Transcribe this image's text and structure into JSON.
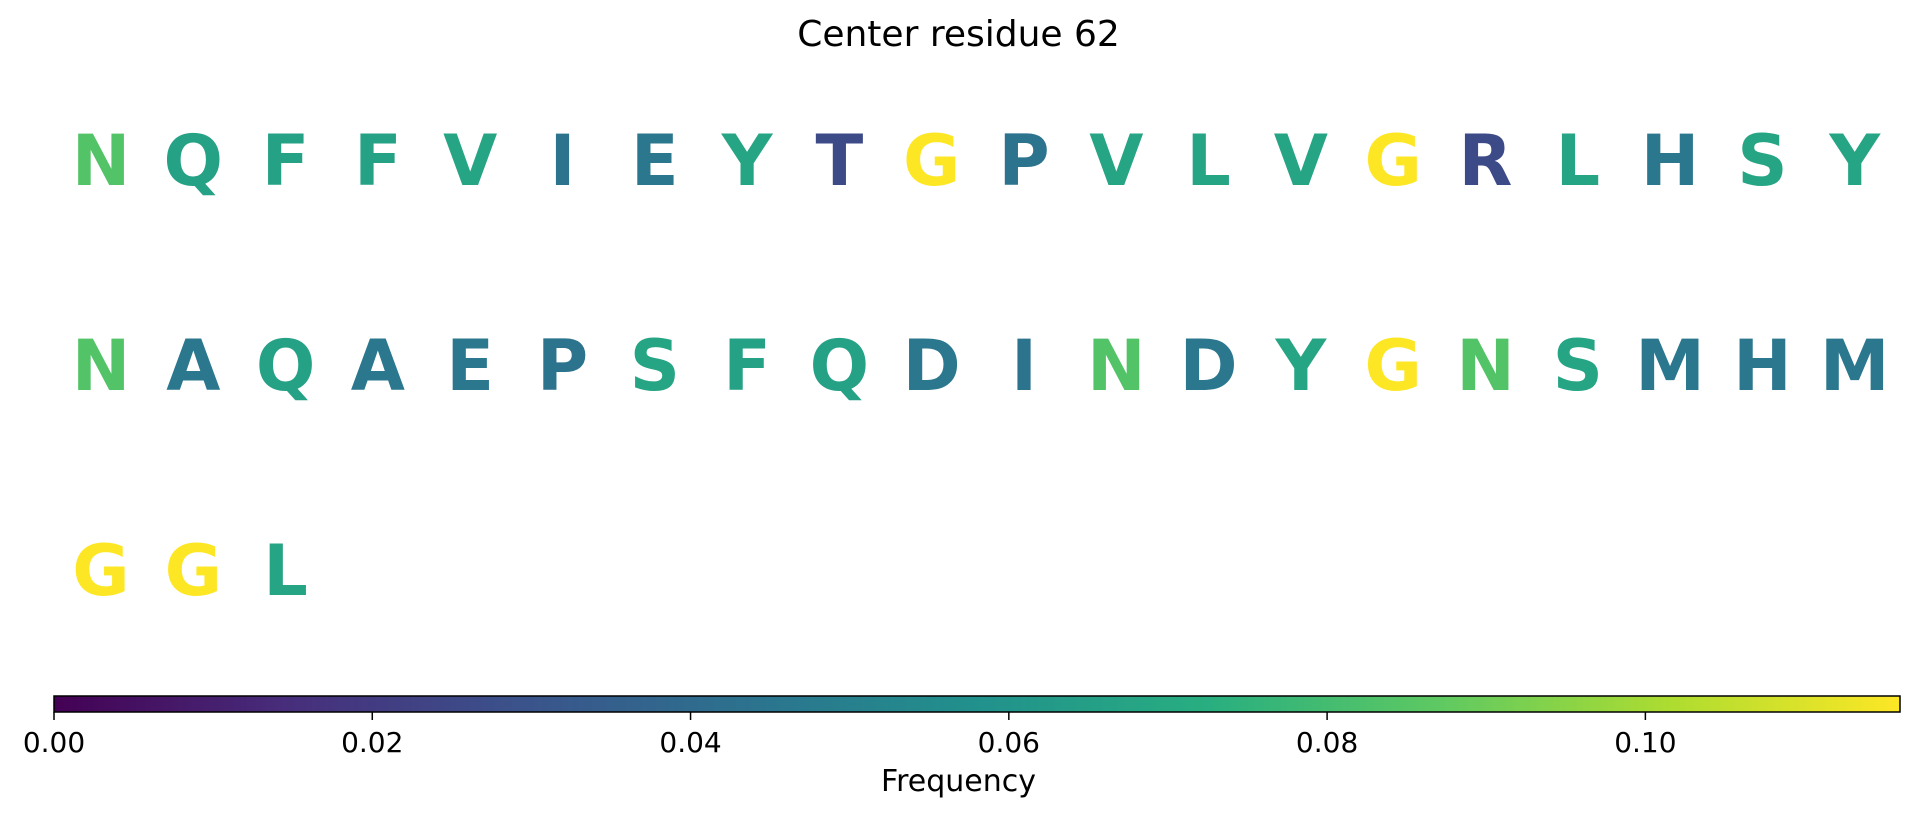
{
  "chart_data": {
    "type": "sequence-logo",
    "title": "Center residue 62",
    "residues": [
      {
        "aa": "N",
        "freq": 0.084
      },
      {
        "aa": "Q",
        "freq": 0.066
      },
      {
        "aa": "F",
        "freq": 0.066
      },
      {
        "aa": "F",
        "freq": 0.066
      },
      {
        "aa": "V",
        "freq": 0.068
      },
      {
        "aa": "I",
        "freq": 0.044
      },
      {
        "aa": "E",
        "freq": 0.046
      },
      {
        "aa": "Y",
        "freq": 0.068
      },
      {
        "aa": "T",
        "freq": 0.026
      },
      {
        "aa": "G",
        "freq": 0.116
      },
      {
        "aa": "P",
        "freq": 0.044
      },
      {
        "aa": "V",
        "freq": 0.068
      },
      {
        "aa": "L",
        "freq": 0.068
      },
      {
        "aa": "V",
        "freq": 0.068
      },
      {
        "aa": "G",
        "freq": 0.116
      },
      {
        "aa": "R",
        "freq": 0.026
      },
      {
        "aa": "L",
        "freq": 0.068
      },
      {
        "aa": "H",
        "freq": 0.046
      },
      {
        "aa": "S",
        "freq": 0.068
      },
      {
        "aa": "Y",
        "freq": 0.068
      },
      {
        "aa": "N",
        "freq": 0.084
      },
      {
        "aa": "A",
        "freq": 0.046
      },
      {
        "aa": "Q",
        "freq": 0.066
      },
      {
        "aa": "A",
        "freq": 0.046
      },
      {
        "aa": "E",
        "freq": 0.046
      },
      {
        "aa": "P",
        "freq": 0.044
      },
      {
        "aa": "S",
        "freq": 0.068
      },
      {
        "aa": "F",
        "freq": 0.066
      },
      {
        "aa": "Q",
        "freq": 0.066
      },
      {
        "aa": "D",
        "freq": 0.046
      },
      {
        "aa": "I",
        "freq": 0.044
      },
      {
        "aa": "N",
        "freq": 0.084
      },
      {
        "aa": "D",
        "freq": 0.046
      },
      {
        "aa": "Y",
        "freq": 0.068
      },
      {
        "aa": "G",
        "freq": 0.116
      },
      {
        "aa": "N",
        "freq": 0.084
      },
      {
        "aa": "S",
        "freq": 0.068
      },
      {
        "aa": "M",
        "freq": 0.046
      },
      {
        "aa": "H",
        "freq": 0.046
      },
      {
        "aa": "M",
        "freq": 0.046
      },
      {
        "aa": "G",
        "freq": 0.116
      },
      {
        "aa": "G",
        "freq": 0.116
      },
      {
        "aa": "L",
        "freq": 0.068
      }
    ],
    "letters_per_row": 20,
    "colorbar": {
      "label": "Frequency",
      "colormap": "viridis",
      "range": [
        0.0,
        0.116
      ],
      "ticks": [
        0.0,
        0.02,
        0.04,
        0.06,
        0.08,
        0.1
      ],
      "tick_labels": [
        "0.00",
        "0.02",
        "0.04",
        "0.06",
        "0.08",
        "0.10"
      ],
      "orientation": "horizontal",
      "placement": "bottom"
    }
  }
}
